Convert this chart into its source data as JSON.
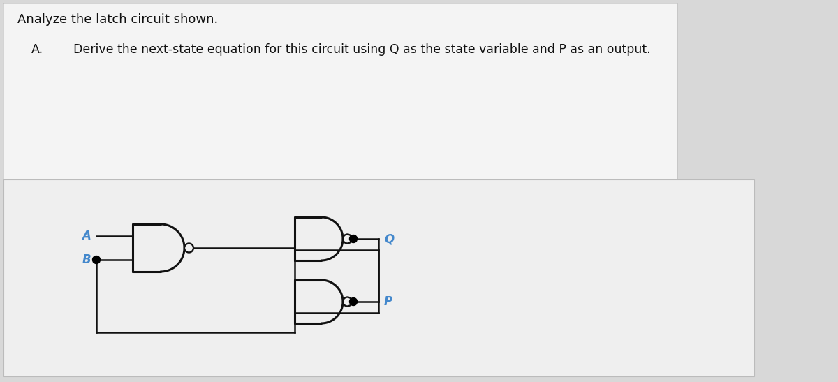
{
  "title_line1": "Analyze the latch circuit shown.",
  "title_line2_a": "A.",
  "title_line2_b": "Derive the next-state equation for this circuit using Q as the state variable and P as an output.",
  "label_A": "A",
  "label_B": "B",
  "label_Q": "Q",
  "label_P": "P",
  "bg_color": "#d8d8d8",
  "paper_top_color": "#f2f2f2",
  "paper_bot_color": "#eeeeee",
  "wire_color": "#111111",
  "label_color": "#4488cc",
  "text_color": "#111111",
  "gate_color": "#111111",
  "gate_lw": 2.2,
  "wire_lw": 1.8
}
